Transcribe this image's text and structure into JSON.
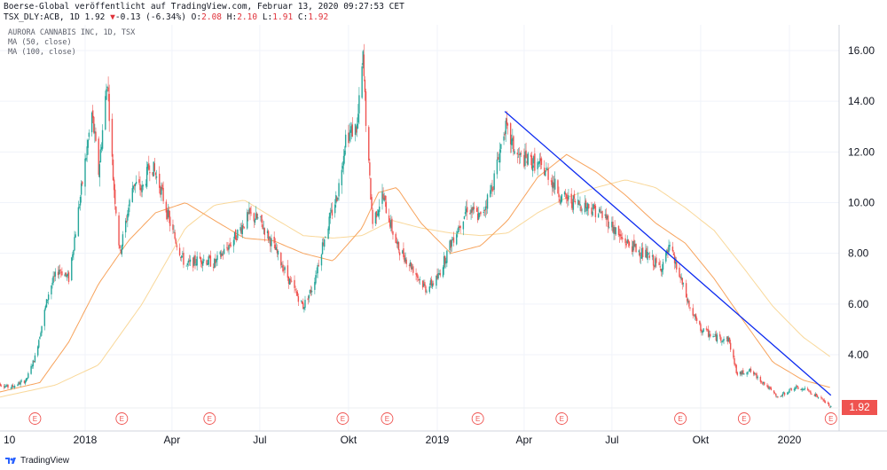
{
  "header": {
    "line1": "Boerse-Global veröffentlicht auf TradingView.com, Februar 13, 2020 09:27:53 CET",
    "symbol": "TSX_DLY:ACB, 1D 1.92",
    "change_arrow": "▼",
    "change": "-0.13 (-6.34%)",
    "o_label": "O:",
    "o_value": "2.08",
    "h_label": "H:",
    "h_value": "2.10",
    "l_label": "L:",
    "l_value": "1.91",
    "c_label": "C:",
    "c_value": "1.92"
  },
  "legend": [
    "AURORA CANNABIS INC, 1D, TSX",
    "MA (50, close)",
    "MA (100, close)"
  ],
  "last_price": "1.92",
  "footer": {
    "brand": "TradingView"
  },
  "colors": {
    "up": "#26a69a",
    "down": "#ef5350",
    "ma50": "#f7a35c",
    "ma100": "#f9d89a",
    "trendline": "#0d2bf0",
    "earnings": "#ef5350"
  },
  "chart_data": {
    "type": "candlestick",
    "symbol": "TSX_DLY:ACB",
    "x_tick_labels": [
      "10",
      "2018",
      "Apr",
      "Jul",
      "Okt",
      "2019",
      "Apr",
      "Jul",
      "Okt",
      "2020"
    ],
    "y_ticks": [
      4.0,
      6.0,
      8.0,
      10.0,
      12.0,
      14.0,
      16.0
    ],
    "y_tick_labels": [
      "4.00",
      "6.00",
      "8.00",
      "10.00",
      "12.00",
      "14.00",
      "16.00"
    ],
    "ylim": [
      1.4,
      17.2
    ],
    "grid": true,
    "price_path": [
      [
        "2017-10-01",
        2.9
      ],
      [
        "2017-10-15",
        2.7
      ],
      [
        "2017-11-01",
        3.0
      ],
      [
        "2017-11-10",
        3.9
      ],
      [
        "2017-11-25",
        6.6
      ],
      [
        "2017-12-05",
        7.4
      ],
      [
        "2017-12-15",
        7.0
      ],
      [
        "2017-12-28",
        10.5
      ],
      [
        "2018-01-08",
        13.5
      ],
      [
        "2018-01-15",
        11.2
      ],
      [
        "2018-01-24",
        14.9
      ],
      [
        "2018-01-30",
        11.0
      ],
      [
        "2018-02-06",
        8.0
      ],
      [
        "2018-02-20",
        10.8
      ],
      [
        "2018-03-01",
        10.5
      ],
      [
        "2018-03-10",
        11.6
      ],
      [
        "2018-03-20",
        10.6
      ],
      [
        "2018-04-01",
        8.9
      ],
      [
        "2018-04-15",
        7.5
      ],
      [
        "2018-05-01",
        7.8
      ],
      [
        "2018-05-15",
        7.6
      ],
      [
        "2018-06-01",
        8.4
      ],
      [
        "2018-06-20",
        9.5
      ],
      [
        "2018-07-01",
        9.3
      ],
      [
        "2018-07-15",
        8.3
      ],
      [
        "2018-08-01",
        6.9
      ],
      [
        "2018-08-15",
        5.9
      ],
      [
        "2018-08-25",
        6.7
      ],
      [
        "2018-09-05",
        8.5
      ],
      [
        "2018-09-20",
        10.4
      ],
      [
        "2018-09-28",
        12.6
      ],
      [
        "2018-10-10",
        13.0
      ],
      [
        "2018-10-16",
        15.7
      ],
      [
        "2018-10-20",
        12.5
      ],
      [
        "2018-10-26",
        9.2
      ],
      [
        "2018-11-05",
        10.3
      ],
      [
        "2018-11-20",
        8.3
      ],
      [
        "2018-12-05",
        7.5
      ],
      [
        "2018-12-20",
        6.6
      ],
      [
        "2019-01-01",
        7.0
      ],
      [
        "2019-01-15",
        8.4
      ],
      [
        "2019-02-01",
        9.8
      ],
      [
        "2019-02-15",
        9.4
      ],
      [
        "2019-02-28",
        10.8
      ],
      [
        "2019-03-12",
        13.0
      ],
      [
        "2019-03-25",
        11.8
      ],
      [
        "2019-04-10",
        11.6
      ],
      [
        "2019-04-25",
        11.2
      ],
      [
        "2019-05-10",
        10.2
      ],
      [
        "2019-05-25",
        10.0
      ],
      [
        "2019-06-10",
        9.8
      ],
      [
        "2019-06-25",
        9.4
      ],
      [
        "2019-07-10",
        8.6
      ],
      [
        "2019-07-25",
        8.2
      ],
      [
        "2019-08-10",
        7.8
      ],
      [
        "2019-08-20",
        7.4
      ],
      [
        "2019-08-30",
        8.2
      ],
      [
        "2019-09-10",
        7.0
      ],
      [
        "2019-09-20",
        5.8
      ],
      [
        "2019-10-01",
        5.0
      ],
      [
        "2019-10-15",
        4.7
      ],
      [
        "2019-10-30",
        4.6
      ],
      [
        "2019-11-08",
        3.2
      ],
      [
        "2019-11-20",
        3.4
      ],
      [
        "2019-12-05",
        2.9
      ],
      [
        "2019-12-20",
        2.3
      ],
      [
        "2020-01-05",
        2.7
      ],
      [
        "2020-01-20",
        2.6
      ],
      [
        "2020-02-05",
        2.2
      ],
      [
        "2020-02-13",
        1.92
      ]
    ],
    "ma_50_path": [
      [
        "2017-10-01",
        2.5
      ],
      [
        "2017-11-15",
        2.9
      ],
      [
        "2017-12-15",
        4.5
      ],
      [
        "2018-01-15",
        6.8
      ],
      [
        "2018-02-15",
        8.5
      ],
      [
        "2018-03-15",
        9.6
      ],
      [
        "2018-04-15",
        10.0
      ],
      [
        "2018-05-15",
        9.3
      ],
      [
        "2018-06-15",
        8.6
      ],
      [
        "2018-07-15",
        8.5
      ],
      [
        "2018-08-15",
        8.0
      ],
      [
        "2018-09-15",
        7.7
      ],
      [
        "2018-10-15",
        9.0
      ],
      [
        "2018-11-01",
        10.4
      ],
      [
        "2018-11-20",
        10.6
      ],
      [
        "2018-12-15",
        9.2
      ],
      [
        "2019-01-15",
        8.0
      ],
      [
        "2019-02-15",
        8.3
      ],
      [
        "2019-03-15",
        9.3
      ],
      [
        "2019-04-15",
        11.0
      ],
      [
        "2019-05-15",
        11.9
      ],
      [
        "2019-06-15",
        11.2
      ],
      [
        "2019-07-15",
        10.3
      ],
      [
        "2019-08-15",
        9.2
      ],
      [
        "2019-09-15",
        8.4
      ],
      [
        "2019-10-15",
        7.0
      ],
      [
        "2019-11-15",
        5.3
      ],
      [
        "2019-12-15",
        3.7
      ],
      [
        "2020-01-15",
        3.0
      ],
      [
        "2020-02-13",
        2.7
      ]
    ],
    "ma_100_path": [
      [
        "2017-10-01",
        2.3
      ],
      [
        "2017-12-01",
        2.8
      ],
      [
        "2018-01-15",
        3.6
      ],
      [
        "2018-03-01",
        6.0
      ],
      [
        "2018-04-15",
        9.0
      ],
      [
        "2018-05-15",
        9.9
      ],
      [
        "2018-06-15",
        10.1
      ],
      [
        "2018-07-15",
        9.4
      ],
      [
        "2018-08-15",
        8.7
      ],
      [
        "2018-09-15",
        8.6
      ],
      [
        "2018-10-15",
        8.7
      ],
      [
        "2018-11-15",
        9.3
      ],
      [
        "2018-12-15",
        9.0
      ],
      [
        "2019-01-15",
        8.8
      ],
      [
        "2019-02-15",
        8.7
      ],
      [
        "2019-03-15",
        8.8
      ],
      [
        "2019-04-15",
        9.6
      ],
      [
        "2019-05-15",
        10.2
      ],
      [
        "2019-06-15",
        10.6
      ],
      [
        "2019-07-15",
        10.9
      ],
      [
        "2019-08-15",
        10.6
      ],
      [
        "2019-09-15",
        9.8
      ],
      [
        "2019-10-15",
        8.9
      ],
      [
        "2019-11-15",
        7.4
      ],
      [
        "2019-12-15",
        5.9
      ],
      [
        "2020-01-15",
        4.7
      ],
      [
        "2020-02-13",
        3.9
      ]
    ],
    "trendline": {
      "from": [
        "2019-03-12",
        13.6
      ],
      "to": [
        "2020-02-13",
        2.4
      ]
    },
    "earnings_marker": "E",
    "earnings_dates": [
      "2017-11-10",
      "2018-02-08",
      "2018-05-10",
      "2018-09-25",
      "2018-11-10",
      "2019-02-12",
      "2019-05-10",
      "2019-09-10",
      "2019-11-15",
      "2020-02-13"
    ]
  }
}
